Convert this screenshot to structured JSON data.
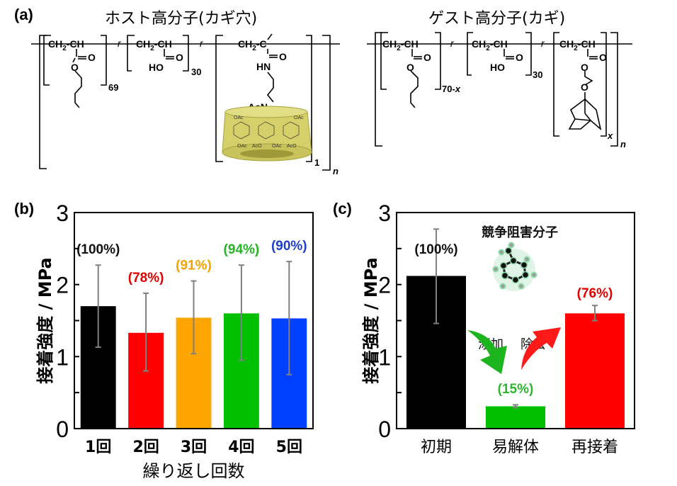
{
  "panel_a": {
    "label": "(a)",
    "host": {
      "title": "ホスト高分子(カギ穴)",
      "units": [
        {
          "backbone": "CH2-CH",
          "side": "C(=O)O-butyl",
          "subscript": "69"
        },
        {
          "backbone": "CH2-CH",
          "side": "C(=O)OH",
          "subscript": "30"
        },
        {
          "backbone": "CH2-C(CH3)",
          "side": "C(=O)NH-propyl-N(Ac)-cyclodextrin",
          "subscript": "1"
        }
      ],
      "linker": "r",
      "outer_subscript": "n",
      "labels": {
        "o": "O",
        "ho": "HO",
        "hn": "HN",
        "acn": "AcN",
        "oac": "OAc",
        "aco": "AcO"
      }
    },
    "guest": {
      "title": "ゲスト高分子(カギ)",
      "units": [
        {
          "backbone": "CH2-CH",
          "side": "C(=O)O-butyl",
          "subscript": "70-x"
        },
        {
          "backbone": "CH2-CH",
          "side": "C(=O)OH",
          "subscript": "30"
        },
        {
          "backbone": "CH2-CH",
          "side": "C(=O)O-CH2-O-adamantyl",
          "subscript": "x"
        }
      ],
      "linker": "r",
      "outer_subscript": "n"
    }
  },
  "chart_data": [
    {
      "panel": "(b)",
      "type": "bar",
      "title": "",
      "xlabel": "繰り返し回数",
      "ylabel": "接着強度 / MPa",
      "ylim": [
        0,
        3
      ],
      "yticks": [
        0,
        1,
        2,
        3
      ],
      "categories": [
        "1回",
        "2回",
        "3回",
        "4回",
        "5回"
      ],
      "values": [
        1.7,
        1.33,
        1.54,
        1.6,
        1.53
      ],
      "error_low": [
        1.13,
        0.8,
        1.04,
        0.95,
        0.75
      ],
      "error_high": [
        2.27,
        1.88,
        2.05,
        2.27,
        2.32
      ],
      "colors": [
        "#000000",
        "#ff0000",
        "#ffa500",
        "#00c000",
        "#0040ff"
      ],
      "data_labels": [
        "(100%)",
        "(78%)",
        "(91%)",
        "(94%)",
        "(90%)"
      ],
      "label_colors": [
        "#111111",
        "#e00000",
        "#f5a300",
        "#22b522",
        "#1f3fcc"
      ],
      "grid": false,
      "legend": "none"
    },
    {
      "panel": "(c)",
      "type": "bar",
      "title": "",
      "xlabel": "",
      "ylabel": "接着強度 / MPa",
      "ylim": [
        0,
        3
      ],
      "yticks": [
        0,
        1,
        2,
        3
      ],
      "categories": [
        "初期",
        "易解体",
        "再接着"
      ],
      "values": [
        2.12,
        0.31,
        1.6
      ],
      "error_low": [
        1.46,
        0.29,
        1.5
      ],
      "error_high": [
        2.77,
        0.33,
        1.71
      ],
      "colors": [
        "#000000",
        "#00c000",
        "#ff0000"
      ],
      "data_labels": [
        "(100%)",
        "(15%)",
        "(76%)"
      ],
      "label_colors": [
        "#111111",
        "#2fb52f",
        "#e00000"
      ],
      "annotations": {
        "inhibitor": "競争阻害分子",
        "add": "添加",
        "remove": "除去"
      },
      "grid": false,
      "legend": "none"
    }
  ]
}
